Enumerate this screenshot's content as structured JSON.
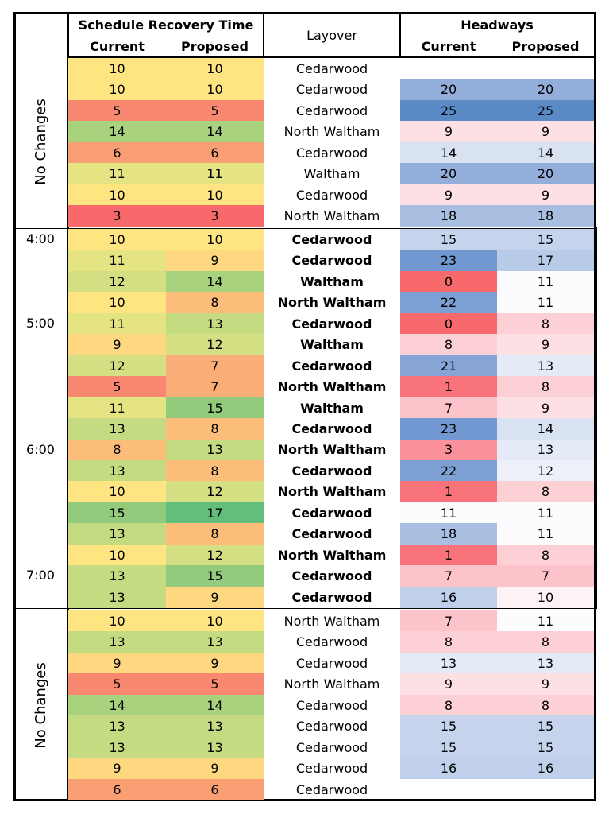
{
  "headers": {
    "recovery_title": "Schedule Recovery Time",
    "layover": "Layover",
    "headways_title": "Headways",
    "current": "Current",
    "proposed": "Proposed"
  },
  "sections": {
    "top_label": "No Changes",
    "bottom_label": "No Changes",
    "times": [
      {
        "label": "4:00",
        "row": 0
      },
      {
        "label": "5:00",
        "row": 4
      },
      {
        "label": "6:00",
        "row": 10
      },
      {
        "label": "7:00",
        "row": 16
      }
    ]
  },
  "rows": [
    {
      "rc": 10,
      "rp": 10,
      "lay": "Cedarwood",
      "hc": null,
      "hp": null,
      "sec": "top"
    },
    {
      "rc": 10,
      "rp": 10,
      "lay": "Cedarwood",
      "hc": 20,
      "hp": 20,
      "sec": "top"
    },
    {
      "rc": 5,
      "rp": 5,
      "lay": "Cedarwood",
      "hc": 25,
      "hp": 25,
      "sec": "top"
    },
    {
      "rc": 14,
      "rp": 14,
      "lay": "North Waltham",
      "hc": 9,
      "hp": 9,
      "sec": "top"
    },
    {
      "rc": 6,
      "rp": 6,
      "lay": "Cedarwood",
      "hc": 14,
      "hp": 14,
      "sec": "top"
    },
    {
      "rc": 11,
      "rp": 11,
      "lay": "Waltham",
      "hc": 20,
      "hp": 20,
      "sec": "top"
    },
    {
      "rc": 10,
      "rp": 10,
      "lay": "Cedarwood",
      "hc": 9,
      "hp": 9,
      "sec": "top"
    },
    {
      "rc": 3,
      "rp": 3,
      "lay": "North Waltham",
      "hc": 18,
      "hp": 18,
      "sec": "top"
    },
    {
      "rc": 10,
      "rp": 10,
      "lay": "Cedarwood",
      "hc": 15,
      "hp": 15,
      "sec": "mid"
    },
    {
      "rc": 11,
      "rp": 9,
      "lay": "Cedarwood",
      "hc": 23,
      "hp": 17,
      "sec": "mid"
    },
    {
      "rc": 12,
      "rp": 14,
      "lay": "Waltham",
      "hc": 0,
      "hp": 11,
      "sec": "mid"
    },
    {
      "rc": 10,
      "rp": 8,
      "lay": "North Waltham",
      "hc": 22,
      "hp": 11,
      "sec": "mid"
    },
    {
      "rc": 11,
      "rp": 13,
      "lay": "Cedarwood",
      "hc": 0,
      "hp": 8,
      "sec": "mid"
    },
    {
      "rc": 9,
      "rp": 12,
      "lay": "Waltham",
      "hc": 8,
      "hp": 9,
      "sec": "mid"
    },
    {
      "rc": 12,
      "rp": 7,
      "lay": "Cedarwood",
      "hc": 21,
      "hp": 13,
      "sec": "mid"
    },
    {
      "rc": 5,
      "rp": 7,
      "lay": "North Waltham",
      "hc": 1,
      "hp": 8,
      "sec": "mid"
    },
    {
      "rc": 11,
      "rp": 15,
      "lay": "Waltham",
      "hc": 7,
      "hp": 9,
      "sec": "mid"
    },
    {
      "rc": 13,
      "rp": 8,
      "lay": "Cedarwood",
      "hc": 23,
      "hp": 14,
      "sec": "mid"
    },
    {
      "rc": 8,
      "rp": 13,
      "lay": "North Waltham",
      "hc": 3,
      "hp": 13,
      "sec": "mid"
    },
    {
      "rc": 13,
      "rp": 8,
      "lay": "Cedarwood",
      "hc": 22,
      "hp": 12,
      "sec": "mid"
    },
    {
      "rc": 10,
      "rp": 12,
      "lay": "North Waltham",
      "hc": 1,
      "hp": 8,
      "sec": "mid"
    },
    {
      "rc": 15,
      "rp": 17,
      "lay": "Cedarwood",
      "hc": 11,
      "hp": 11,
      "sec": "mid"
    },
    {
      "rc": 13,
      "rp": 8,
      "lay": "Cedarwood",
      "hc": 18,
      "hp": 11,
      "sec": "mid"
    },
    {
      "rc": 10,
      "rp": 12,
      "lay": "North Waltham",
      "hc": 1,
      "hp": 8,
      "sec": "mid"
    },
    {
      "rc": 13,
      "rp": 15,
      "lay": "Cedarwood",
      "hc": 7,
      "hp": 7,
      "sec": "mid"
    },
    {
      "rc": 13,
      "rp": 9,
      "lay": "Cedarwood",
      "hc": 16,
      "hp": 10,
      "sec": "mid"
    },
    {
      "rc": 10,
      "rp": 10,
      "lay": "North Waltham",
      "hc": 7,
      "hp": 11,
      "sec": "bot"
    },
    {
      "rc": 13,
      "rp": 13,
      "lay": "Cedarwood",
      "hc": 8,
      "hp": 8,
      "sec": "bot"
    },
    {
      "rc": 9,
      "rp": 9,
      "lay": "Cedarwood",
      "hc": 13,
      "hp": 13,
      "sec": "bot"
    },
    {
      "rc": 5,
      "rp": 5,
      "lay": "North Waltham",
      "hc": 9,
      "hp": 9,
      "sec": "bot"
    },
    {
      "rc": 14,
      "rp": 14,
      "lay": "Cedarwood",
      "hc": 8,
      "hp": 8,
      "sec": "bot"
    },
    {
      "rc": 13,
      "rp": 13,
      "lay": "Cedarwood",
      "hc": 15,
      "hp": 15,
      "sec": "bot"
    },
    {
      "rc": 13,
      "rp": 13,
      "lay": "Cedarwood",
      "hc": 15,
      "hp": 15,
      "sec": "bot"
    },
    {
      "rc": 9,
      "rp": 9,
      "lay": "Cedarwood",
      "hc": 16,
      "hp": 16,
      "sec": "bot"
    },
    {
      "rc": 6,
      "rp": 6,
      "lay": "Cedarwood",
      "hc": null,
      "hp": null,
      "sec": "bot"
    }
  ],
  "colors": {
    "recovery": {
      "3": "#f8696b",
      "5": "#f98870",
      "6": "#fa9e74",
      "7": "#fbad78",
      "8": "#fcbd7b",
      "9": "#fed880",
      "10": "#fee582",
      "11": "#e5e483",
      "12": "#d3df82",
      "13": "#c4db81",
      "14": "#a9d27f",
      "15": "#92cb7c",
      "17": "#63be7b"
    },
    "headway": {
      "0": "#f8696b",
      "1": "#f8747a",
      "3": "#f9909a",
      "7": "#fcc4ca",
      "8": "#fcd0d5",
      "9": "#fde0e3",
      "10": "#fdf2f4",
      "11": "#fcfcff",
      "12": "#edf0f8",
      "13": "#e4ebf6",
      "14": "#d9e2f1",
      "15": "#c5d4ec",
      "16": "#c0d0ea",
      "17": "#b8cbe8",
      "18": "#a9bfe2",
      "20": "#93aedb",
      "21": "#86a5d6",
      "22": "#7da0d4",
      "23": "#7298d1",
      "25": "#5a8ac6"
    }
  }
}
